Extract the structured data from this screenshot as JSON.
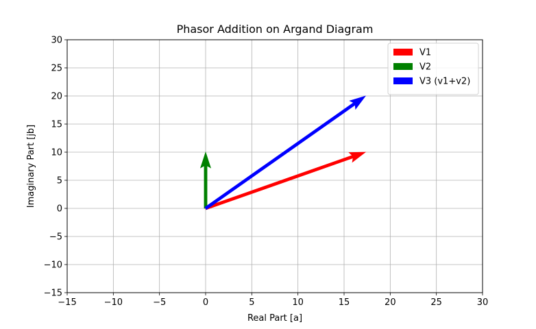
{
  "chart_data": {
    "type": "vector",
    "title": "Phasor Addition on Argand Diagram",
    "xlabel": "Real Part [a]",
    "ylabel": "Imaginary Part [jb]",
    "xlim": [
      -15,
      30
    ],
    "ylim": [
      -15,
      30
    ],
    "xticks": [
      -15,
      -10,
      -5,
      0,
      5,
      10,
      15,
      20,
      25,
      30
    ],
    "yticks": [
      -15,
      -10,
      -5,
      0,
      5,
      10,
      15,
      20,
      25,
      30
    ],
    "grid": true,
    "legend_position": "top-right",
    "series": [
      {
        "name": "V1",
        "color": "#ff0000",
        "origin": [
          0,
          0
        ],
        "end": [
          17.32,
          10
        ]
      },
      {
        "name": "V2",
        "color": "#008000",
        "origin": [
          0,
          0
        ],
        "end": [
          0,
          10
        ]
      },
      {
        "name": "V3 (v1+v2)",
        "color": "#0000ff",
        "origin": [
          0,
          0
        ],
        "end": [
          17.32,
          20
        ]
      }
    ]
  }
}
